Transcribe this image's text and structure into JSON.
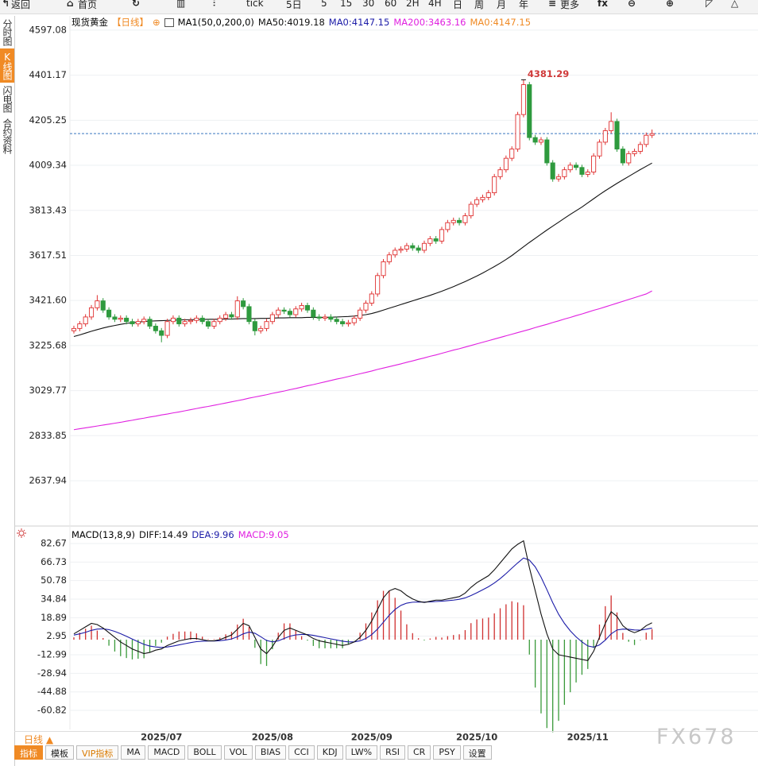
{
  "toolbar": {
    "items": [
      "返回",
      "首页",
      "tick",
      "5日",
      "5",
      "15",
      "30",
      "60",
      "2H",
      "4H",
      "日",
      "周",
      "月",
      "年",
      "更多"
    ]
  },
  "sidebar": [
    "分时图",
    "K线图",
    "闪电图",
    "合约资料"
  ],
  "bottom": {
    "period": "日线 ▲",
    "tabs": [
      "指标",
      "模板",
      "VIP指标",
      "MA",
      "MACD",
      "BOLL",
      "VOL",
      "BIAS",
      "CCI",
      "KDJ",
      "LW%",
      "RSI",
      "CR",
      "PSY",
      "设置"
    ]
  },
  "watermark": "FX678",
  "chart_data": [
    {
      "type": "candlestick",
      "title": "现货黄金",
      "period": "【日线】",
      "indicator": "MA1(50,0,200,0)",
      "legend": [
        {
          "text": "MA50:4019.18",
          "color": "#111111"
        },
        {
          "text": "MA0:4147.15",
          "color": "#1c1ca8"
        },
        {
          "text": "MA200:3463.16",
          "color": "#e020e0"
        },
        {
          "text": "MA0:4147.15",
          "color": "#f08a24"
        }
      ],
      "categories": [
        null,
        null,
        null,
        null,
        null,
        null,
        null,
        null,
        null,
        null,
        null,
        null,
        null,
        null,
        null,
        "2025/07",
        null,
        null,
        null,
        null,
        null,
        null,
        null,
        null,
        null,
        null,
        null,
        null,
        null,
        null,
        null,
        null,
        null,
        null,
        "2025/08",
        null,
        null,
        null,
        null,
        null,
        null,
        null,
        null,
        null,
        null,
        null,
        null,
        null,
        null,
        null,
        null,
        "2025/09",
        null,
        null,
        null,
        null,
        null,
        null,
        null,
        null,
        null,
        null,
        null,
        null,
        null,
        null,
        null,
        null,
        null,
        "2025/10",
        null,
        null,
        null,
        null,
        null,
        null,
        null,
        null,
        null,
        null,
        null,
        null,
        null,
        null,
        null,
        null,
        null,
        null,
        "2025/11",
        null,
        null,
        null,
        null,
        null,
        null,
        null,
        null,
        null,
        null,
        null
      ],
      "open": [
        3290,
        3300,
        3320,
        3350,
        3390,
        3420,
        3380,
        3350,
        3340,
        3345,
        3330,
        3320,
        3330,
        3340,
        3310,
        3290,
        3270,
        3330,
        3345,
        3320,
        3330,
        3335,
        3345,
        3330,
        3310,
        3330,
        3345,
        3360,
        3350,
        3420,
        3395,
        3330,
        3290,
        3300,
        3330,
        3360,
        3380,
        3375,
        3360,
        3385,
        3400,
        3380,
        3350,
        3345,
        3350,
        3340,
        3330,
        3320,
        3325,
        3345,
        3380,
        3410,
        3450,
        3530,
        3590,
        3620,
        3640,
        3645,
        3660,
        3650,
        3640,
        3670,
        3690,
        3680,
        3730,
        3760,
        3770,
        3760,
        3790,
        3840,
        3860,
        3870,
        3890,
        3960,
        3990,
        4040,
        4080,
        4230,
        4360,
        4130,
        4110,
        4120,
        4020,
        3950,
        3960,
        3990,
        4010,
        4000,
        3970,
        3980,
        4050,
        4110,
        4160,
        4200,
        4080,
        4020,
        4060,
        4070,
        4100,
        4140
      ],
      "high": [
        3312,
        3332,
        3362,
        3402,
        3445,
        3432,
        3392,
        3362,
        3357,
        3357,
        3342,
        3342,
        3352,
        3352,
        3322,
        3302,
        3342,
        3357,
        3357,
        3342,
        3347,
        3357,
        3357,
        3342,
        3342,
        3357,
        3372,
        3372,
        3440,
        3432,
        3407,
        3342,
        3312,
        3342,
        3372,
        3392,
        3392,
        3387,
        3397,
        3412,
        3412,
        3392,
        3362,
        3362,
        3362,
        3352,
        3342,
        3337,
        3357,
        3392,
        3422,
        3462,
        3542,
        3602,
        3632,
        3652,
        3657,
        3672,
        3672,
        3662,
        3682,
        3702,
        3702,
        3742,
        3772,
        3782,
        3782,
        3802,
        3852,
        3872,
        3882,
        3902,
        3972,
        4002,
        4052,
        4092,
        4242,
        4381.29,
        4372,
        4142,
        4132,
        4132,
        4032,
        3972,
        4002,
        4022,
        4022,
        4012,
        3992,
        4062,
        4122,
        4172,
        4240,
        4212,
        4092,
        4072,
        4082,
        4112,
        4152,
        4165
      ],
      "low": [
        3278,
        3288,
        3308,
        3338,
        3378,
        3368,
        3338,
        3328,
        3328,
        3318,
        3308,
        3308,
        3318,
        3298,
        3278,
        3240,
        3258,
        3318,
        3308,
        3308,
        3318,
        3323,
        3318,
        3298,
        3298,
        3318,
        3333,
        3338,
        3338,
        3383,
        3318,
        3270,
        3278,
        3288,
        3318,
        3348,
        3363,
        3348,
        3348,
        3373,
        3368,
        3338,
        3333,
        3333,
        3328,
        3318,
        3308,
        3308,
        3313,
        3333,
        3368,
        3398,
        3438,
        3518,
        3578,
        3608,
        3628,
        3633,
        3638,
        3628,
        3628,
        3658,
        3668,
        3668,
        3718,
        3748,
        3748,
        3748,
        3778,
        3828,
        3848,
        3858,
        3878,
        3948,
        3978,
        4028,
        4068,
        4218,
        4118,
        4098,
        4098,
        4008,
        3938,
        3938,
        3948,
        3978,
        3988,
        3958,
        3958,
        3968,
        4038,
        4098,
        4148,
        4068,
        4008,
        4008,
        4048,
        4058,
        4088,
        4128
      ],
      "close": [
        3300,
        3320,
        3350,
        3390,
        3420,
        3380,
        3350,
        3340,
        3345,
        3330,
        3320,
        3330,
        3340,
        3310,
        3290,
        3270,
        3330,
        3345,
        3320,
        3330,
        3335,
        3345,
        3330,
        3310,
        3330,
        3345,
        3360,
        3350,
        3420,
        3395,
        3330,
        3290,
        3300,
        3330,
        3360,
        3380,
        3375,
        3360,
        3385,
        3400,
        3380,
        3350,
        3345,
        3350,
        3340,
        3330,
        3320,
        3325,
        3345,
        3380,
        3410,
        3450,
        3530,
        3590,
        3620,
        3640,
        3645,
        3660,
        3650,
        3640,
        3670,
        3690,
        3680,
        3730,
        3760,
        3770,
        3760,
        3790,
        3840,
        3860,
        3870,
        3890,
        3960,
        3990,
        4040,
        4080,
        4230,
        4360,
        4130,
        4110,
        4120,
        4020,
        3950,
        3960,
        3990,
        4010,
        4000,
        3970,
        3980,
        4050,
        4110,
        4160,
        4200,
        4080,
        4020,
        4060,
        4070,
        4100,
        4140,
        4147.15
      ],
      "series": [
        {
          "color": "#111111",
          "values": [
            3265,
            3272,
            3280,
            3288,
            3295,
            3302,
            3308,
            3313,
            3318,
            3322,
            3325,
            3328,
            3330,
            3332,
            3333,
            3334,
            3335,
            3336,
            3337,
            3338,
            3338,
            3339,
            3339,
            3340,
            3340,
            3340,
            3341,
            3341,
            3342,
            3343,
            3343,
            3343,
            3344,
            3344,
            3345,
            3346,
            3346,
            3347,
            3347,
            3347,
            3348,
            3348,
            3348,
            3348,
            3349,
            3350,
            3351,
            3352,
            3354,
            3357,
            3360,
            3365,
            3372,
            3380,
            3388,
            3396,
            3404,
            3412,
            3420,
            3428,
            3436,
            3444,
            3453,
            3462,
            3472,
            3482,
            3493,
            3504,
            3516,
            3528,
            3541,
            3555,
            3569,
            3584,
            3600,
            3617,
            3636,
            3655,
            3674,
            3692,
            3710,
            3728,
            3745,
            3762,
            3779,
            3796,
            3812,
            3828,
            3846,
            3864,
            3882,
            3899,
            3915,
            3931,
            3946,
            3961,
            3976,
            3991,
            4005,
            4019.18
          ]
        },
        {
          "color": "#e020e0",
          "values": [
            2860,
            2864,
            2868,
            2872,
            2876,
            2880,
            2884,
            2888,
            2892,
            2897,
            2901,
            2906,
            2910,
            2915,
            2919,
            2924,
            2928,
            2933,
            2937,
            2942,
            2947,
            2952,
            2957,
            2961,
            2966,
            2971,
            2976,
            2981,
            2986,
            2991,
            2997,
            3002,
            3007,
            3012,
            3018,
            3023,
            3028,
            3034,
            3039,
            3045,
            3051,
            3056,
            3062,
            3068,
            3074,
            3080,
            3085,
            3091,
            3097,
            3103,
            3109,
            3115,
            3122,
            3128,
            3134,
            3140,
            3146,
            3153,
            3159,
            3166,
            3172,
            3179,
            3185,
            3192,
            3199,
            3206,
            3212,
            3219,
            3226,
            3233,
            3240,
            3247,
            3254,
            3261,
            3268,
            3275,
            3282,
            3289,
            3296,
            3304,
            3311,
            3318,
            3326,
            3333,
            3341,
            3348,
            3356,
            3363,
            3371,
            3379,
            3386,
            3394,
            3402,
            3410,
            3418,
            3426,
            3434,
            3442,
            3450,
            3463.16
          ]
        }
      ],
      "up_color": "#e03030",
      "down_color": "#2e9a3e",
      "last_price": 4147.15,
      "last_price_color": "#3a78c0",
      "annotation": "4381.29",
      "annotation_color": "#d03a3a",
      "ylim": [
        2448,
        4659
      ],
      "yticks": [
        4597.08,
        4401.17,
        4205.25,
        4009.34,
        3813.43,
        3617.51,
        {
          "value": 3421.6,
          "label": "3421.60"
        },
        3225.68,
        3029.77,
        2833.85,
        2637.94
      ],
      "grid": true
    },
    {
      "type": "macd",
      "title": "MACD(13,8,9)",
      "legend": [
        {
          "text": "DIFF:14.49",
          "color": "#111111"
        },
        {
          "text": "DEA:9.96",
          "color": "#1c1ca8"
        },
        {
          "text": "MACD:9.05",
          "color": "#e020e0"
        }
      ],
      "diff": [
        5,
        8,
        11,
        14,
        13,
        10,
        6,
        2,
        -2,
        -5,
        -8,
        -10,
        -12,
        -11,
        -9,
        -8,
        -5,
        -3,
        -1,
        0,
        1,
        1,
        0,
        -1,
        -1,
        0,
        2,
        4,
        9,
        14,
        12,
        2,
        -8,
        -12,
        -6,
        2,
        8,
        10,
        8,
        6,
        4,
        1,
        -1,
        -2,
        -3,
        -4,
        -5,
        -4,
        -2,
        2,
        8,
        16,
        26,
        36,
        42,
        44,
        42,
        38,
        35,
        33,
        32,
        33,
        34,
        34,
        35,
        36,
        37,
        40,
        45,
        49,
        52,
        55,
        60,
        66,
        72,
        78,
        82,
        85,
        62,
        42,
        22,
        5,
        -8,
        -13,
        -14,
        -15,
        -16,
        -17,
        -18,
        -10,
        2,
        14,
        24,
        20,
        12,
        8,
        6,
        8,
        12,
        14.49
      ],
      "dea": [
        4,
        5,
        6.3,
        8,
        9.1,
        9.3,
        8.6,
        7.1,
        5.1,
        2.9,
        0.5,
        -1.8,
        -4,
        -5.5,
        -6.3,
        -6.7,
        -6.3,
        -5.5,
        -4.5,
        -3.5,
        -2.5,
        -1.7,
        -1.3,
        -1.2,
        -1.2,
        -0.9,
        -0.3,
        0.6,
        2.5,
        5,
        6.5,
        5.5,
        2.5,
        -0.7,
        -1.9,
        -1,
        1,
        3,
        4.1,
        4.5,
        4.4,
        3.7,
        2.7,
        1.7,
        0.7,
        -0.3,
        -1.3,
        -1.9,
        -1.9,
        -1,
        1,
        4.3,
        9.1,
        15,
        21,
        26,
        29.5,
        31.4,
        32.2,
        32.4,
        32.3,
        32.5,
        32.8,
        33.1,
        33.5,
        34,
        34.7,
        35.9,
        37.9,
        40.3,
        42.9,
        45.5,
        48.7,
        52.5,
        56.8,
        61.5,
        66,
        70.2,
        68.4,
        62.6,
        53.7,
        43,
        31.8,
        21.9,
        14,
        7.6,
        2.4,
        -1.9,
        -5.4,
        -6.4,
        -4.5,
        -0.4,
        5,
        8.3,
        9.1,
        8.9,
        8.3,
        8.2,
        9,
        9.96
      ],
      "macd": [
        2,
        6,
        9.4,
        12,
        7.8,
        1.4,
        -5.2,
        -10.2,
        -14.2,
        -15.8,
        -17,
        -16.4,
        -16,
        -11,
        -5.4,
        -2.6,
        2.6,
        5,
        7,
        7,
        7,
        5.4,
        2.6,
        0.4,
        0.4,
        1.8,
        4.6,
        6.8,
        13,
        18,
        11,
        -7,
        -21,
        -22.6,
        -8.2,
        6,
        14,
        14,
        7.8,
        3,
        -0.8,
        -5.4,
        -7.4,
        -7.4,
        -7.4,
        -7.4,
        -7.4,
        -4.2,
        -0.2,
        6,
        14,
        23.4,
        33.8,
        42,
        42,
        36,
        25,
        13.2,
        5.6,
        1.2,
        -0.6,
        1,
        2.4,
        1.8,
        3,
        4,
        4.6,
        8.2,
        14.2,
        17.4,
        18.2,
        19,
        22.6,
        27,
        30.4,
        33,
        32,
        29.6,
        -12.8,
        -41.2,
        -63.4,
        -76,
        -79.6,
        -69.8,
        -56,
        -45.2,
        -36.8,
        -30.2,
        -25.2,
        -7.2,
        13,
        28.8,
        38,
        23.4,
        5.8,
        -1.8,
        -4.6,
        -0.4,
        6,
        9.05
      ],
      "diff_color": "#111111",
      "dea_color": "#1c1ca8",
      "up_color": "#d03030",
      "down_color": "#3a9a3a",
      "ylim": [
        -77.2,
        93.6
      ],
      "yticks": [
        82.67,
        66.73,
        50.78,
        34.84,
        18.89,
        2.95,
        -12.99,
        -28.94,
        -44.88,
        -60.82
      ],
      "grid": true
    }
  ]
}
